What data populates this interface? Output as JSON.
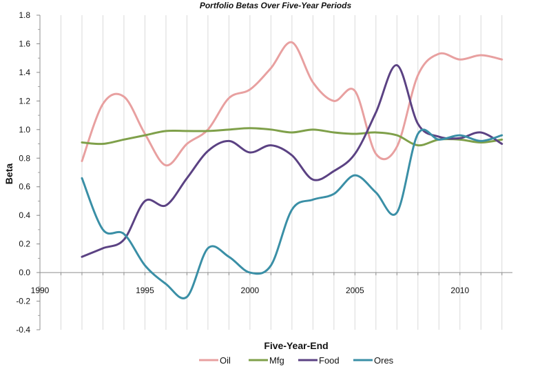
{
  "chart_data": {
    "type": "line",
    "title": "Portfolio Betas Over Five-Year Periods",
    "xlabel": "Five-Year-End",
    "ylabel": "Beta",
    "xlim": [
      1990,
      2012.5
    ],
    "ylim": [
      -0.4,
      1.8
    ],
    "xticks": [
      1990,
      1995,
      2000,
      2005,
      2010
    ],
    "yticks": [
      -0.4,
      -0.2,
      0.0,
      0.2,
      0.4,
      0.6,
      0.8,
      1.0,
      1.2,
      1.4,
      1.6,
      1.8
    ],
    "ytick_labels": [
      "-0.4",
      "-0.2",
      "0.0",
      "0.2",
      "0.4",
      "0.6",
      "0.8",
      "1.0",
      "1.2",
      "1.4",
      "1.6",
      "1.8"
    ],
    "grid": "vertical",
    "legend_position": "bottom",
    "x": [
      1992,
      1993,
      1994,
      1995,
      1996,
      1997,
      1998,
      1999,
      2000,
      2001,
      2002,
      2003,
      2004,
      2005,
      2006,
      2007,
      2008,
      2009,
      2010,
      2011,
      2012
    ],
    "series": [
      {
        "name": "Oil",
        "color": "#e8a0a0",
        "values": [
          0.78,
          1.18,
          1.23,
          0.97,
          0.75,
          0.9,
          1.0,
          1.22,
          1.28,
          1.43,
          1.61,
          1.33,
          1.2,
          1.27,
          0.83,
          0.88,
          1.38,
          1.53,
          1.49,
          1.52,
          1.49
        ]
      },
      {
        "name": "Mfg",
        "color": "#7fa04a",
        "values": [
          0.91,
          0.9,
          0.93,
          0.96,
          0.99,
          0.99,
          0.99,
          1.0,
          1.01,
          1.0,
          0.98,
          1.0,
          0.98,
          0.97,
          0.98,
          0.96,
          0.89,
          0.93,
          0.93,
          0.91,
          0.93
        ]
      },
      {
        "name": "Food",
        "color": "#5b4283",
        "values": [
          0.11,
          0.17,
          0.23,
          0.5,
          0.47,
          0.66,
          0.85,
          0.92,
          0.84,
          0.89,
          0.82,
          0.65,
          0.71,
          0.83,
          1.12,
          1.45,
          1.04,
          0.95,
          0.94,
          0.98,
          0.9
        ]
      },
      {
        "name": "Ores",
        "color": "#3a8fa6",
        "values": [
          0.66,
          0.3,
          0.27,
          0.05,
          -0.08,
          -0.17,
          0.17,
          0.11,
          0.0,
          0.05,
          0.44,
          0.51,
          0.55,
          0.68,
          0.56,
          0.42,
          0.97,
          0.93,
          0.96,
          0.92,
          0.96
        ]
      }
    ]
  }
}
